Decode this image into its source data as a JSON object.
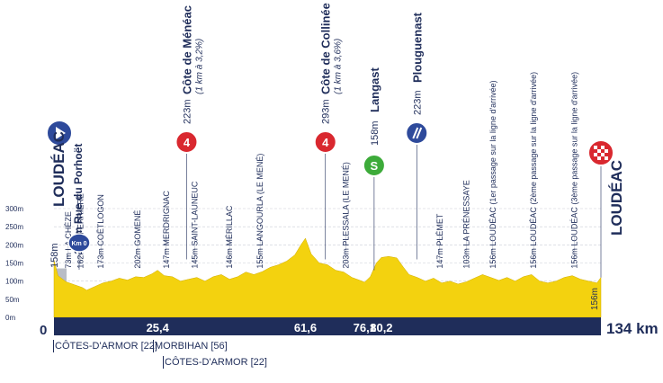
{
  "chart_data": {
    "type": "area",
    "unit_x": "km",
    "x_total_label": "134 km",
    "x_start_label": "0",
    "xlim": [
      0,
      134
    ],
    "ylim": [
      0,
      300
    ],
    "y_ticks": [
      "0m",
      "50m",
      "100m",
      "150m",
      "200m",
      "250m",
      "300m"
    ],
    "y_tick_values": [
      0,
      50,
      100,
      150,
      200,
      250,
      300
    ],
    "km_markers": [
      {
        "km": 25.4,
        "label": "25,4"
      },
      {
        "km": 61.6,
        "label": "61,6"
      },
      {
        "km": 76.1,
        "label": "76,1"
      },
      {
        "km": 80.2,
        "label": "80,2"
      }
    ],
    "profile": [
      [
        0,
        158
      ],
      [
        1,
        115
      ],
      [
        3,
        98
      ],
      [
        5,
        90
      ],
      [
        7,
        82
      ],
      [
        8,
        75
      ],
      [
        10,
        85
      ],
      [
        12,
        95
      ],
      [
        14,
        100
      ],
      [
        16,
        108
      ],
      [
        18,
        103
      ],
      [
        20,
        112
      ],
      [
        22,
        110
      ],
      [
        24,
        120
      ],
      [
        25.4,
        130
      ],
      [
        27,
        115
      ],
      [
        29,
        112
      ],
      [
        31,
        100
      ],
      [
        33,
        105
      ],
      [
        35,
        110
      ],
      [
        37,
        100
      ],
      [
        39,
        112
      ],
      [
        41,
        118
      ],
      [
        43,
        105
      ],
      [
        45,
        112
      ],
      [
        47,
        125
      ],
      [
        49,
        118
      ],
      [
        51,
        126
      ],
      [
        53,
        138
      ],
      [
        55,
        145
      ],
      [
        57,
        155
      ],
      [
        59,
        172
      ],
      [
        60.5,
        200
      ],
      [
        61.6,
        218
      ],
      [
        63,
        175
      ],
      [
        65,
        150
      ],
      [
        67,
        145
      ],
      [
        69,
        130
      ],
      [
        71,
        125
      ],
      [
        73,
        110
      ],
      [
        75,
        102
      ],
      [
        76.1,
        97
      ],
      [
        77.5,
        112
      ],
      [
        79,
        150
      ],
      [
        80.2,
        165
      ],
      [
        82,
        168
      ],
      [
        84,
        164
      ],
      [
        85.5,
        140
      ],
      [
        87,
        118
      ],
      [
        89,
        110
      ],
      [
        91,
        100
      ],
      [
        93,
        108
      ],
      [
        95,
        95
      ],
      [
        97,
        100
      ],
      [
        99,
        92
      ],
      [
        101,
        98
      ],
      [
        103,
        108
      ],
      [
        105,
        118
      ],
      [
        107,
        110
      ],
      [
        109,
        102
      ],
      [
        111,
        110
      ],
      [
        113,
        100
      ],
      [
        115,
        112
      ],
      [
        117,
        118
      ],
      [
        119,
        100
      ],
      [
        121,
        95
      ],
      [
        123,
        100
      ],
      [
        125,
        110
      ],
      [
        127,
        115
      ],
      [
        129,
        105
      ],
      [
        131,
        100
      ],
      [
        133,
        95
      ],
      [
        134,
        110
      ]
    ],
    "places": [
      {
        "km": 0,
        "text": "158m",
        "label": "LOUDÉAC",
        "label2": "130m Rue du Porhoët"
      },
      {
        "km": 3.5,
        "text": "73m LA CHÈZE"
      },
      {
        "km": 6.5,
        "text": "162m LA FERRIÈRE"
      },
      {
        "km": 11.5,
        "text": "173m COËTLOGON"
      },
      {
        "km": 20.5,
        "text": "202m GOMENÉ"
      },
      {
        "km": 27.5,
        "text": "147m MERDRIGNAC"
      },
      {
        "km": 34.5,
        "text": "145m SAINT-LAUNEUC"
      },
      {
        "km": 43,
        "text": "146m MÉRILLAC"
      },
      {
        "km": 50.5,
        "text": "155m LANGOURLA (LE MENÉ)"
      },
      {
        "km": 71.5,
        "text": "203m PLESSALA (LE MENÉ)"
      },
      {
        "km": 94.5,
        "text": "147m PLÉMET"
      },
      {
        "km": 101,
        "text": "103m LA PRÉNESSAYE"
      },
      {
        "km": 107.5,
        "text": "156m LOUDÉAC (1er passage sur la ligne d'arrivée)"
      },
      {
        "km": 117.5,
        "text": "156m LOUDÉAC (2ème passage sur la ligne d'arrivée)"
      },
      {
        "km": 127.5,
        "text": "156m LOUDÉAC (3ème passage sur la ligne d'arrivée)"
      }
    ],
    "climbs": [
      {
        "km": 32.5,
        "badge": "4",
        "alt": "223m",
        "name": "Côte de Ménéac",
        "detail": "(1 km à 3,2%)"
      },
      {
        "km": 66.5,
        "badge": "4",
        "alt": "293m",
        "name": "Côte de Collinée",
        "detail": "(1 km à 3,6%)"
      }
    ],
    "sprint": {
      "km": 80.2,
      "badge": "S",
      "alt": "158m",
      "name": "Langast"
    },
    "feed": {
      "km": 90.2,
      "alt": "223m",
      "name": "Plouguenast"
    },
    "start": {
      "label": "LOUDÉAC",
      "street": "130m Rue du Porhoët",
      "alt": "158m",
      "km0": "Km 0"
    },
    "finish": {
      "label": "LOUDÉAC",
      "alt": "156m"
    },
    "departments": [
      {
        "text": "CÔTES-D'ARMOR [22]"
      },
      {
        "text": "MORBIHAN [56]"
      },
      {
        "text": "CÔTES-D'ARMOR [22]"
      }
    ],
    "colors": {
      "fill": "#f3d20f",
      "band": "#1f2d5a",
      "text": "#1f2d5a",
      "red_badge": "#d9282f",
      "green_badge": "#3dab3a",
      "blue_badge": "#2e4a9b",
      "grey_start": "#b9bdc6"
    }
  }
}
